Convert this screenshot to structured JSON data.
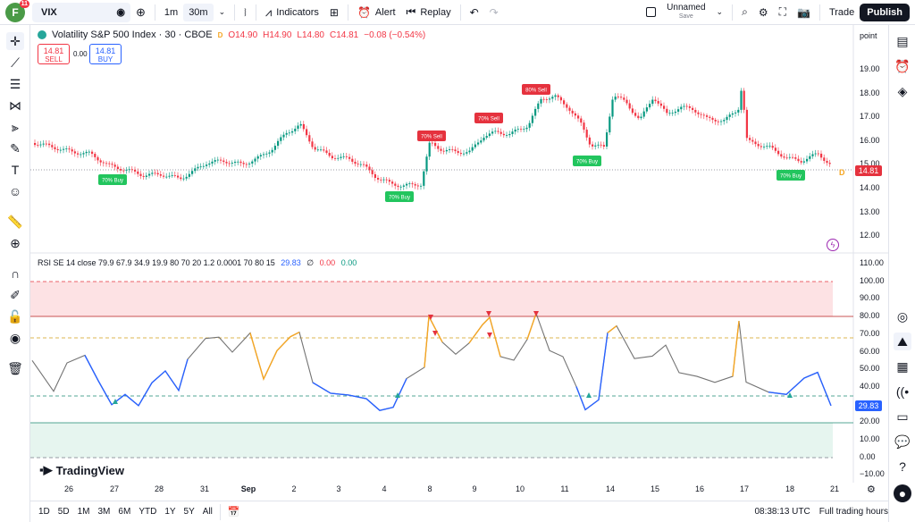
{
  "toolbar": {
    "avatar_letter": "F",
    "notif_count": "11",
    "symbol": "VIX",
    "interval_1": "1m",
    "interval_2": "30m",
    "indicators_label": "Indicators",
    "alert_label": "Alert",
    "replay_label": "Replay",
    "layout_name": "Unnamed",
    "save_label": "Save",
    "trade_label": "Trade",
    "publish_label": "Publish"
  },
  "legend": {
    "title": "Volatility S&P 500 Index · 30 · CBOE",
    "o": "O14.90",
    "h": "H14.90",
    "l": "L14.80",
    "c": "C14.81",
    "chg": "−0.08 (−0.54%)",
    "sell_price": "14.81",
    "sell_label": "SELL",
    "spread": "0.00",
    "buy_price": "14.81",
    "buy_label": "BUY",
    "scale_mode": "point"
  },
  "rsi_legend": {
    "text": "RSI SE 14 close 79.9 67.9 34.9 19.9 80 70 20 1.2 0.0001 70 80 15",
    "value": "29.83",
    "v2": "∅",
    "v3": "0.00",
    "v4": "0.00"
  },
  "price_axis": [
    "19.00",
    "18.00",
    "17.00",
    "16.00",
    "15.00",
    "14.00",
    "13.00",
    "12.00"
  ],
  "last_price": "14.81",
  "rsi_axis": [
    "110.00",
    "100.00",
    "90.00",
    "80.00",
    "70.00",
    "60.00",
    "50.00",
    "40.00",
    "30.00",
    "20.00",
    "10.00",
    "0.00",
    "−10.00"
  ],
  "rsi_last": "29.83",
  "time_axis": [
    "26",
    "27",
    "28",
    "31",
    "Sep",
    "2",
    "3",
    "4",
    "8",
    "9",
    "10",
    "11",
    "14",
    "15",
    "16",
    "17",
    "18",
    "21"
  ],
  "signals": [
    {
      "label": "70% Buy",
      "kind": "buy"
    },
    {
      "label": "70% Buy",
      "kind": "buy"
    },
    {
      "label": "70% Sell",
      "kind": "sell"
    },
    {
      "label": "70% Sell",
      "kind": "sell"
    },
    {
      "label": "80% Sell",
      "kind": "sell"
    },
    {
      "label": "70% Buy",
      "kind": "buy"
    },
    {
      "label": "70% Buy",
      "kind": "buy"
    }
  ],
  "badge_d": "D",
  "bottom": {
    "ranges": [
      "1D",
      "5D",
      "1M",
      "3M",
      "6M",
      "YTD",
      "1Y",
      "5Y",
      "All"
    ],
    "clock": "08:38:13 UTC",
    "session": "Full trading hours"
  },
  "brand": "TradingView",
  "colors": {
    "buy": "#22c55e",
    "sell": "#e5323e",
    "rsi_line": "#737373",
    "rsi_low": "#2962ff",
    "rsi_high": "#f5a623"
  }
}
